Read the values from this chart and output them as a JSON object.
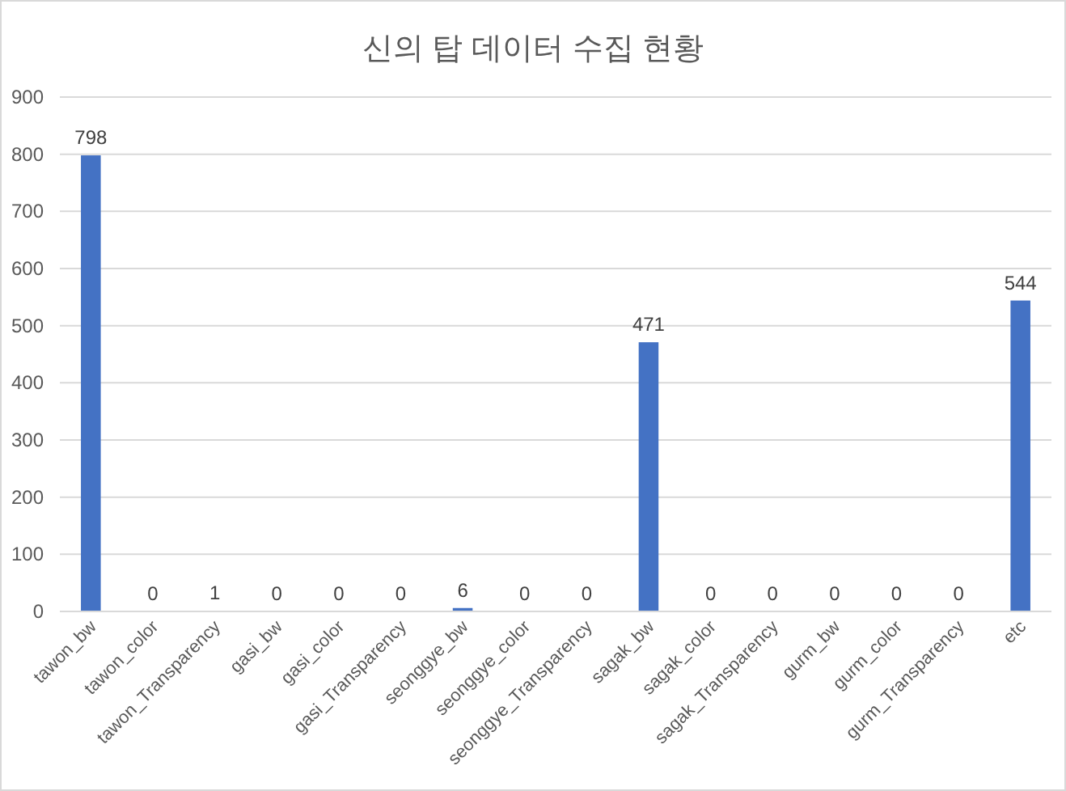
{
  "chart_data": {
    "type": "bar",
    "title": "신의 탑 데이터 수집 현황",
    "categories": [
      "tawon_bw",
      "tawon_color",
      "tawon_Transparency",
      "gasi_bw",
      "gasi_color",
      "gasi_Transparency",
      "seonggye_bw",
      "seonggye_color",
      "seonggye_Transparency",
      "sagak_bw",
      "sagak_color",
      "sagak_Transparency",
      "gurm_bw",
      "gurm_color",
      "gurm_Transparency",
      "etc"
    ],
    "values": [
      798,
      0,
      1,
      0,
      0,
      0,
      6,
      0,
      0,
      471,
      0,
      0,
      0,
      0,
      0,
      544
    ],
    "color": "#4472c4",
    "ylim": [
      0,
      900
    ],
    "yticks": [
      0,
      100,
      200,
      300,
      400,
      500,
      600,
      700,
      800,
      900
    ],
    "grid": "y",
    "data_labels": true
  }
}
